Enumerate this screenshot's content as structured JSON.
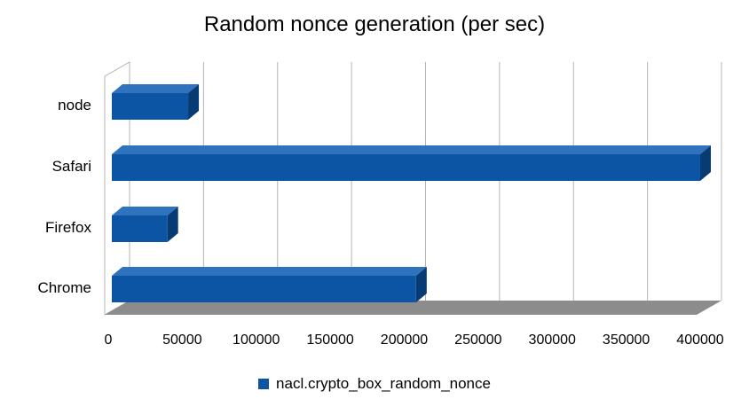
{
  "chart_data": {
    "type": "bar",
    "orientation": "horizontal",
    "style": "3d",
    "title": "Random nonce generation (per sec)",
    "categories": [
      "node",
      "Safari",
      "Firefox",
      "Chrome"
    ],
    "series": [
      {
        "name": "nacl.crypto_box_random_nonce",
        "values": [
          54000,
          400000,
          40000,
          208000
        ]
      }
    ],
    "xlim": [
      0,
      400000
    ],
    "x_ticks": [
      "0",
      "50000",
      "100000",
      "150000",
      "200000",
      "250000",
      "300000",
      "350000",
      "400000"
    ],
    "grid": true,
    "legend": "bottom",
    "colors": {
      "bar_front": "#0c55a4",
      "bar_top": "#2f72bd",
      "bar_side": "#073b74",
      "floor": "#8c8c8c",
      "grid": "#b3b3b3"
    }
  }
}
